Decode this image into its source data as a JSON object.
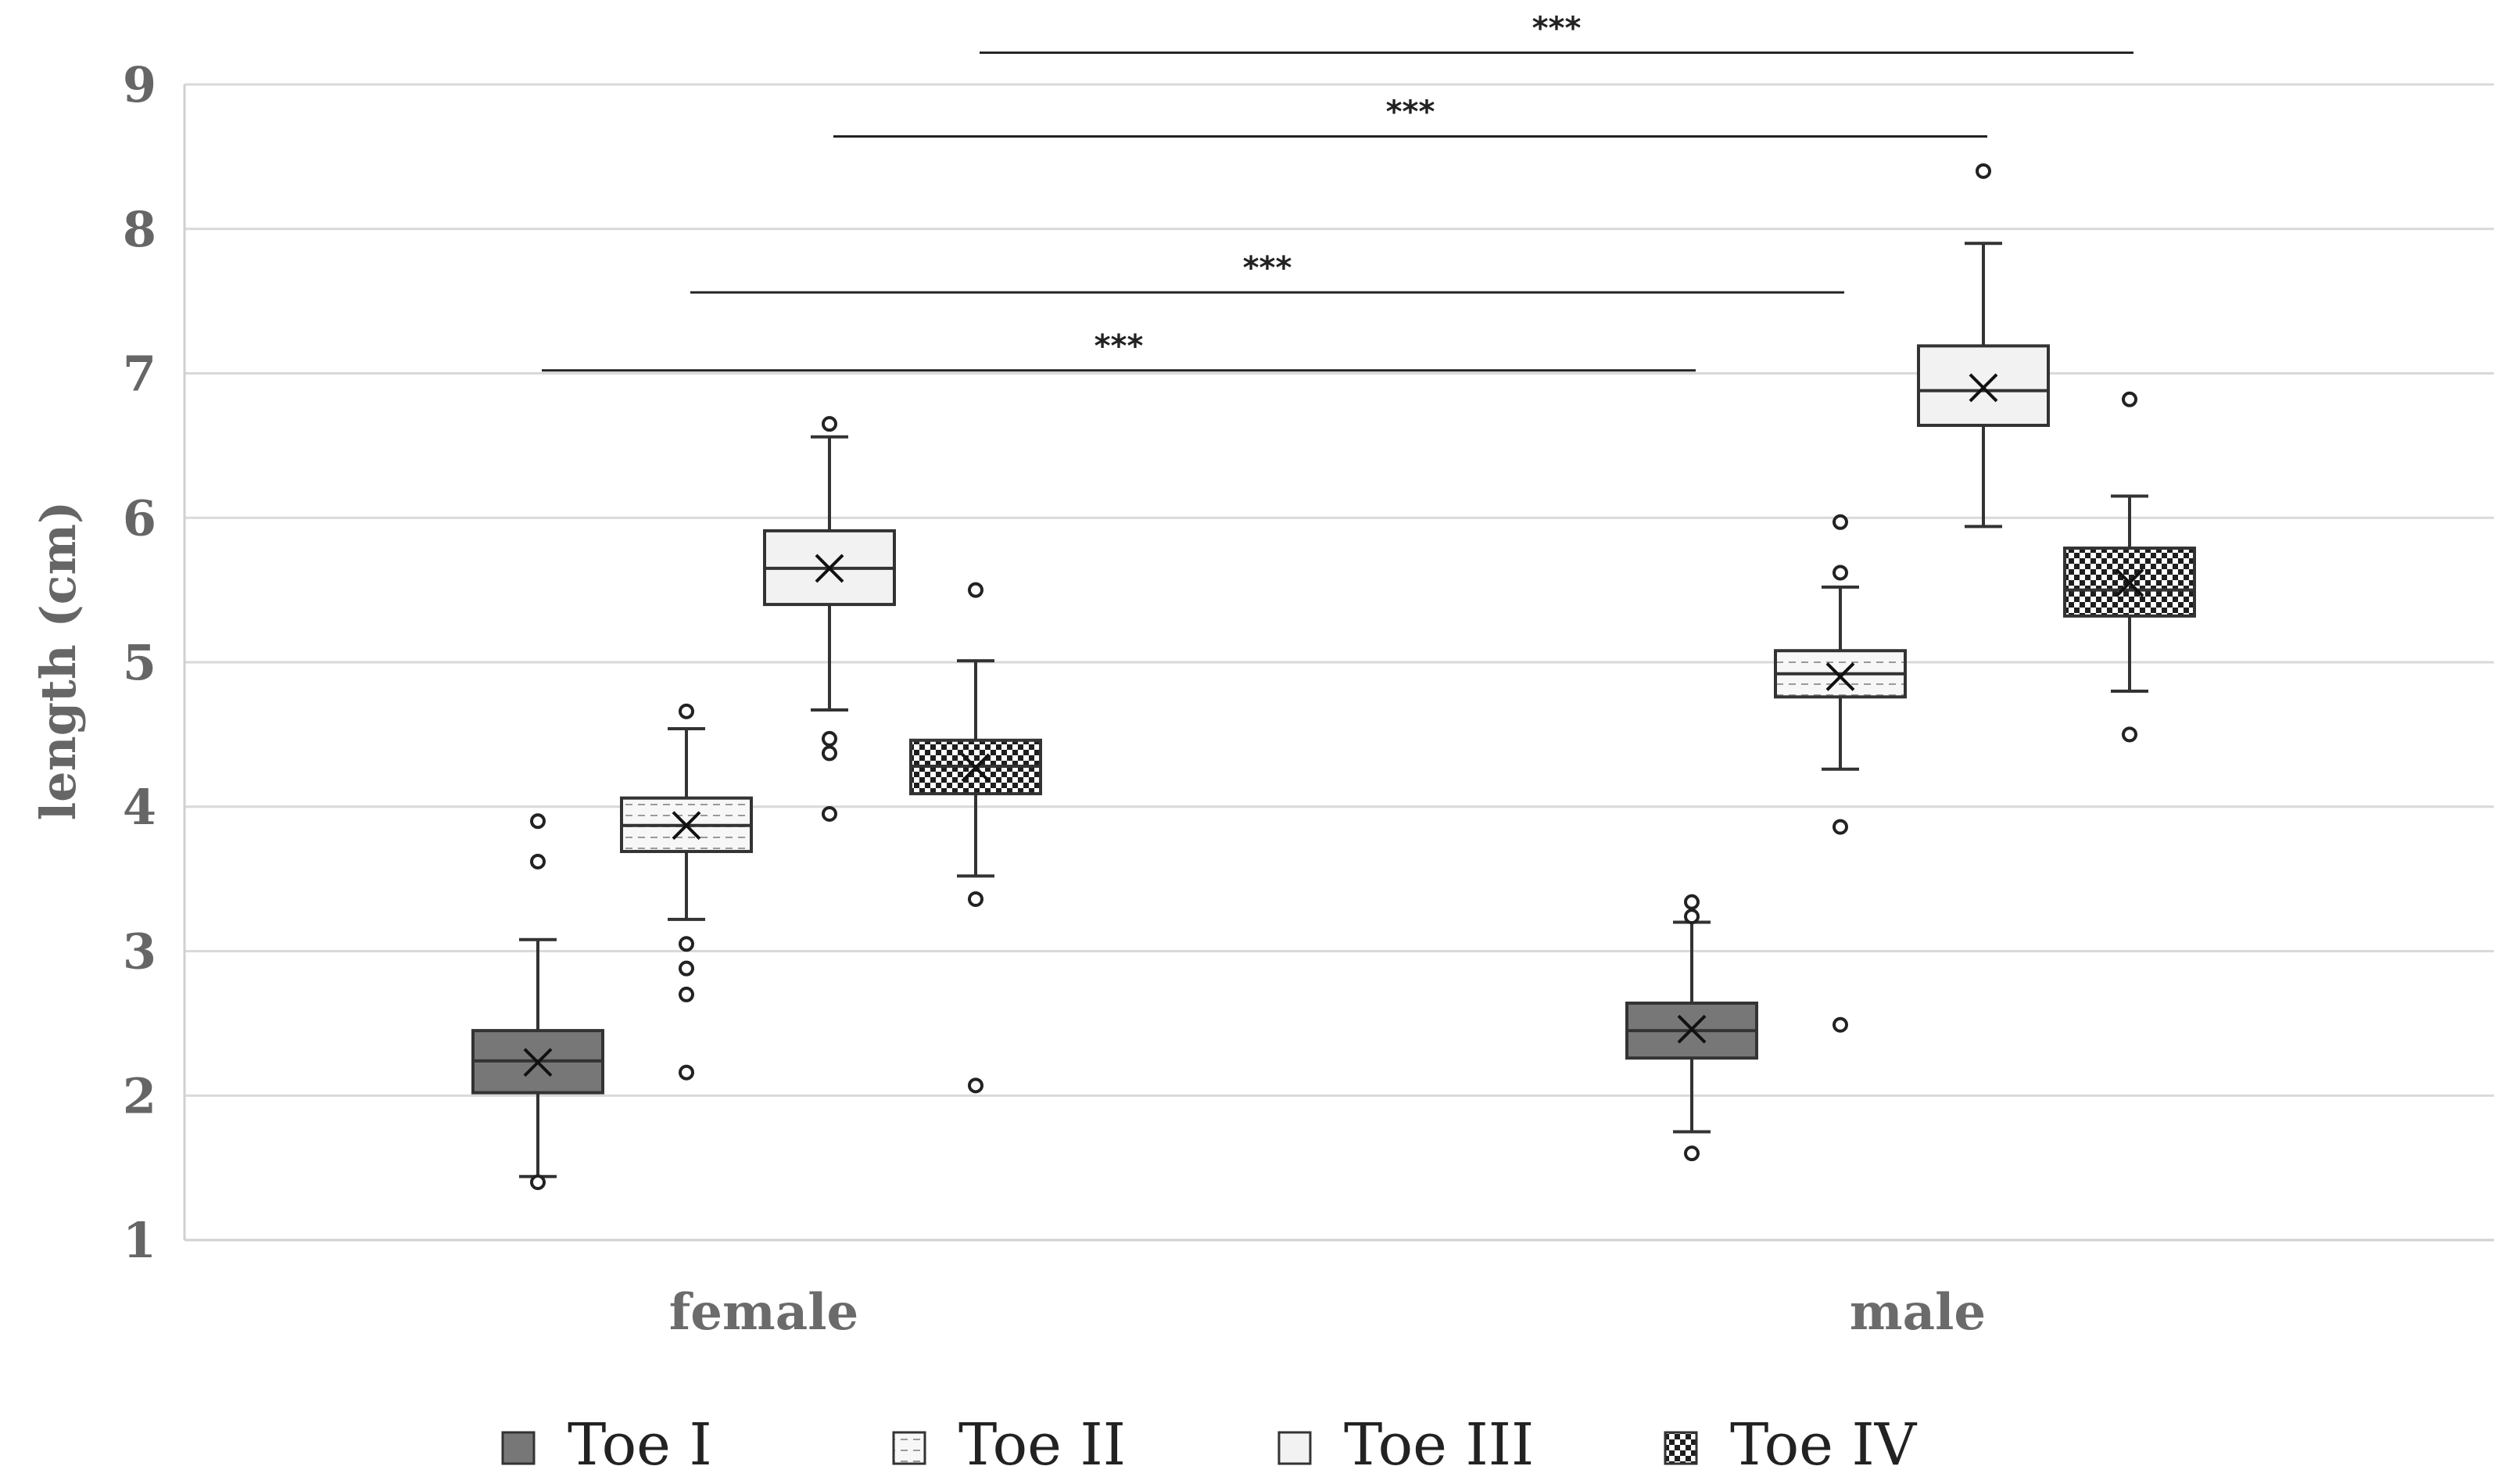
{
  "chart_data": {
    "type": "box",
    "title": "",
    "xlabel": "",
    "ylabel": "length (cm)",
    "ylim": [
      1,
      9
    ],
    "yticks": [
      1,
      2,
      3,
      4,
      5,
      6,
      7,
      8,
      9
    ],
    "grid": true,
    "categories": [
      "female",
      "male"
    ],
    "legend_position": "bottom",
    "series": [
      {
        "name": "Toe I",
        "color": "#777777",
        "pattern": "solid",
        "boxes": [
          {
            "category": "female",
            "min": 1.44,
            "q1": 2.02,
            "median": 2.24,
            "q3": 2.45,
            "max": 3.08,
            "mean": 2.23,
            "outliers": [
              3.9,
              3.62,
              1.4
            ]
          },
          {
            "category": "male",
            "min": 1.75,
            "q1": 2.26,
            "median": 2.45,
            "q3": 2.64,
            "max": 3.2,
            "mean": 2.46,
            "outliers": [
              3.34,
              3.24,
              1.6
            ]
          }
        ]
      },
      {
        "name": "Toe II",
        "color": "#f2f2f2",
        "pattern": "dashed",
        "boxes": [
          {
            "category": "female",
            "min": 3.22,
            "q1": 3.69,
            "median": 3.87,
            "q3": 4.06,
            "max": 4.54,
            "mean": 3.87,
            "outliers": [
              4.66,
              3.05,
              2.88,
              2.7,
              2.16
            ]
          },
          {
            "category": "male",
            "min": 4.26,
            "q1": 4.76,
            "median": 4.92,
            "q3": 5.08,
            "max": 5.52,
            "mean": 4.9,
            "outliers": [
              5.97,
              5.62,
              3.86,
              2.49
            ]
          }
        ]
      },
      {
        "name": "Toe III",
        "color": "#f2f2f2",
        "pattern": "plain",
        "boxes": [
          {
            "category": "female",
            "min": 4.67,
            "q1": 5.4,
            "median": 5.65,
            "q3": 5.91,
            "max": 6.56,
            "mean": 5.65,
            "outliers": [
              6.65,
              4.47,
              4.37,
              3.95
            ]
          },
          {
            "category": "male",
            "min": 5.94,
            "q1": 6.64,
            "median": 6.88,
            "q3": 7.19,
            "max": 7.9,
            "mean": 6.9,
            "outliers": [
              8.4
            ]
          }
        ]
      },
      {
        "name": "Toe IV",
        "color": "#2a2a2a",
        "pattern": "checker",
        "boxes": [
          {
            "category": "female",
            "min": 3.52,
            "q1": 4.09,
            "median": 4.28,
            "q3": 4.46,
            "max": 5.01,
            "mean": 4.27,
            "outliers": [
              5.5,
              3.36,
              2.07
            ]
          },
          {
            "category": "male",
            "min": 4.8,
            "q1": 5.32,
            "median": 5.5,
            "q3": 5.79,
            "max": 6.15,
            "mean": 5.55,
            "outliers": [
              6.82,
              4.5
            ]
          }
        ]
      }
    ],
    "significance": [
      {
        "from_series": "Toe I",
        "from_category": "female",
        "to_series": "Toe I",
        "to_category": "male",
        "label": "***",
        "y": 7.02
      },
      {
        "from_series": "Toe II",
        "from_category": "female",
        "to_series": "Toe II",
        "to_category": "male",
        "label": "***",
        "y": 7.56
      },
      {
        "from_series": "Toe III",
        "from_category": "female",
        "to_series": "Toe III",
        "to_category": "male",
        "label": "***",
        "y": 8.64
      },
      {
        "from_series": "Toe IV",
        "from_category": "female",
        "to_series": "Toe IV",
        "to_category": "male",
        "label": "***",
        "y": 9.22
      }
    ]
  }
}
